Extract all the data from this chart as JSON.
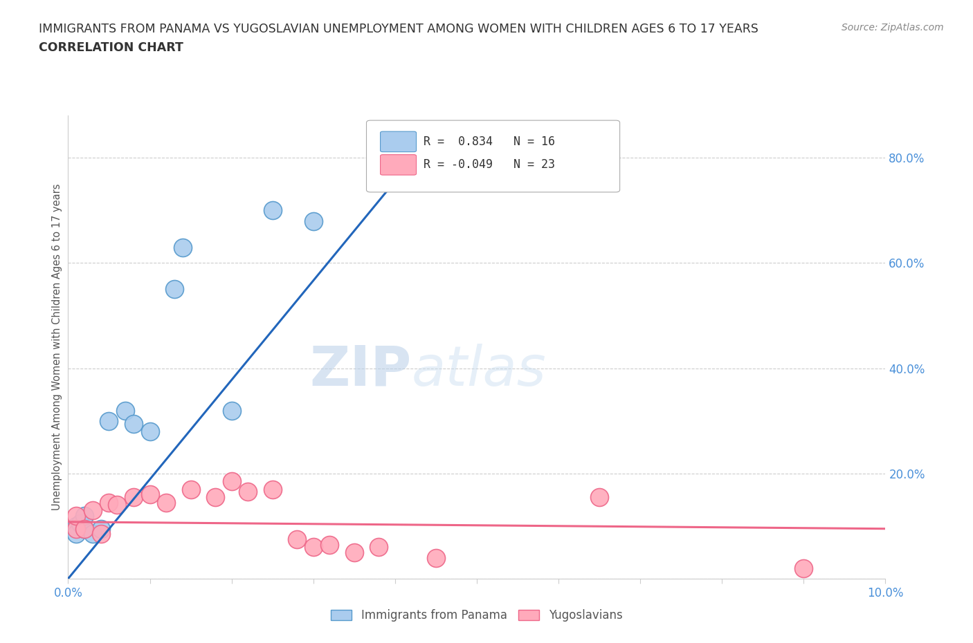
{
  "title_line1": "IMMIGRANTS FROM PANAMA VS YUGOSLAVIAN UNEMPLOYMENT AMONG WOMEN WITH CHILDREN AGES 6 TO 17 YEARS",
  "title_line2": "CORRELATION CHART",
  "source_text": "Source: ZipAtlas.com",
  "ylabel": "Unemployment Among Women with Children Ages 6 to 17 years",
  "watermark_zip": "ZIP",
  "watermark_atlas": "atlas",
  "xlim": [
    0.0,
    0.1
  ],
  "ylim": [
    0.0,
    0.88
  ],
  "yticks": [
    0.0,
    0.2,
    0.4,
    0.6,
    0.8
  ],
  "ytick_labels": [
    "",
    "20.0%",
    "40.0%",
    "60.0%",
    "80.0%"
  ],
  "xtick_labels": [
    "0.0%",
    "",
    "",
    "",
    "",
    "",
    "",
    "",
    "",
    "",
    "10.0%"
  ],
  "panama_color": "#aaccee",
  "panama_edge_color": "#5599cc",
  "yugoslav_color": "#ffaabb",
  "yugoslav_edge_color": "#ee6688",
  "legend_r_panama": "R =  0.834",
  "legend_n_panama": "N = 16",
  "legend_r_yugoslav": "R = -0.049",
  "legend_n_yugoslav": "N = 23",
  "trendline_panama_color": "#2266bb",
  "trendline_yugoslav_color": "#ee6688",
  "panama_x": [
    0.001,
    0.001,
    0.0015,
    0.002,
    0.002,
    0.003,
    0.004,
    0.005,
    0.007,
    0.008,
    0.01,
    0.013,
    0.014,
    0.02,
    0.025,
    0.03
  ],
  "panama_y": [
    0.1,
    0.085,
    0.105,
    0.095,
    0.12,
    0.085,
    0.095,
    0.3,
    0.32,
    0.295,
    0.28,
    0.55,
    0.63,
    0.32,
    0.7,
    0.68
  ],
  "yugoslav_x": [
    0.001,
    0.001,
    0.002,
    0.003,
    0.004,
    0.005,
    0.006,
    0.008,
    0.01,
    0.012,
    0.015,
    0.018,
    0.02,
    0.022,
    0.025,
    0.028,
    0.03,
    0.032,
    0.035,
    0.038,
    0.045,
    0.065,
    0.09
  ],
  "yugoslav_y": [
    0.095,
    0.12,
    0.095,
    0.13,
    0.085,
    0.145,
    0.14,
    0.155,
    0.16,
    0.145,
    0.17,
    0.155,
    0.185,
    0.165,
    0.17,
    0.075,
    0.06,
    0.065,
    0.05,
    0.06,
    0.04,
    0.155,
    0.02
  ],
  "background_color": "#ffffff",
  "grid_color": "#cccccc",
  "title_color": "#333333",
  "label_color": "#4a90d9",
  "trendline_panama_start_x": 0.0,
  "trendline_panama_end_x": 0.045,
  "trendline_yugoslav_start_x": 0.0,
  "trendline_yugoslav_end_x": 0.1
}
